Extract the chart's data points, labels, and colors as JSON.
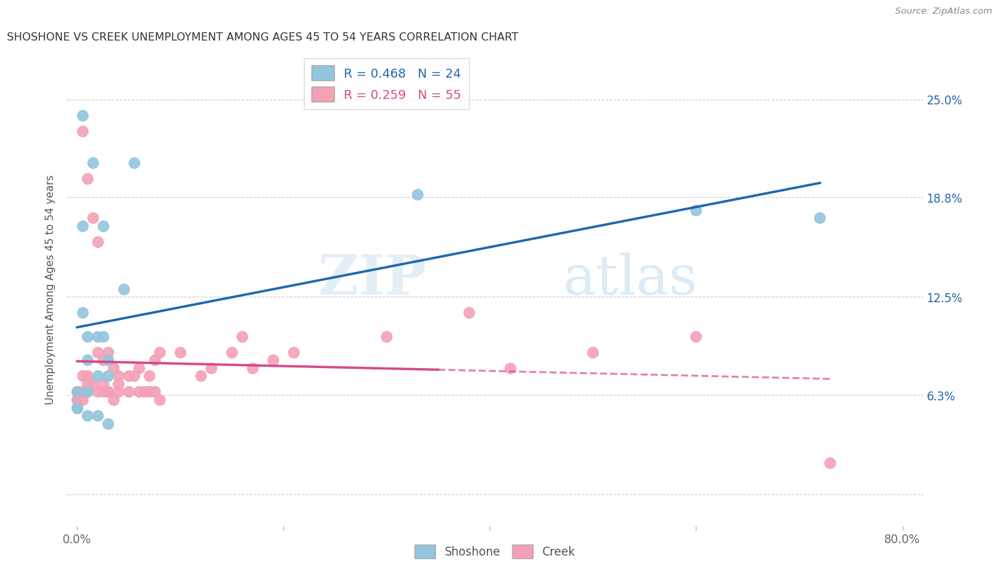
{
  "title": "SHOSHONE VS CREEK UNEMPLOYMENT AMONG AGES 45 TO 54 YEARS CORRELATION CHART",
  "source": "Source: ZipAtlas.com",
  "ylabel": "Unemployment Among Ages 45 to 54 years",
  "xlim": [
    0.0,
    0.8
  ],
  "ylim": [
    -0.02,
    0.28
  ],
  "ytick_values": [
    0.0,
    0.063,
    0.125,
    0.188,
    0.25
  ],
  "ytick_labels": [
    "",
    "6.3%",
    "12.5%",
    "18.8%",
    "25.0%"
  ],
  "shoshone_color": "#92c5de",
  "creek_color": "#f4a0b5",
  "shoshone_line_color": "#2166ac",
  "creek_line_color": "#d6498a",
  "R_shoshone": 0.468,
  "N_shoshone": 24,
  "R_creek": 0.259,
  "N_creek": 55,
  "shoshone_x": [
    0.005,
    0.015,
    0.055,
    0.005,
    0.025,
    0.045,
    0.005,
    0.01,
    0.02,
    0.025,
    0.03,
    0.01,
    0.02,
    0.03,
    0.0,
    0.01,
    0.0,
    0.0,
    0.01,
    0.02,
    0.03,
    0.33,
    0.6,
    0.72
  ],
  "shoshone_y": [
    0.24,
    0.21,
    0.21,
    0.17,
    0.17,
    0.13,
    0.115,
    0.1,
    0.1,
    0.1,
    0.085,
    0.085,
    0.075,
    0.075,
    0.065,
    0.065,
    0.055,
    0.055,
    0.05,
    0.05,
    0.045,
    0.19,
    0.18,
    0.175
  ],
  "creek_x": [
    0.005,
    0.01,
    0.015,
    0.02,
    0.02,
    0.025,
    0.025,
    0.03,
    0.03,
    0.035,
    0.04,
    0.04,
    0.05,
    0.055,
    0.06,
    0.065,
    0.07,
    0.075,
    0.08,
    0.0,
    0.0,
    0.0,
    0.0,
    0.0,
    0.005,
    0.005,
    0.005,
    0.01,
    0.01,
    0.01,
    0.015,
    0.02,
    0.025,
    0.03,
    0.035,
    0.04,
    0.05,
    0.06,
    0.07,
    0.075,
    0.08,
    0.1,
    0.12,
    0.13,
    0.15,
    0.16,
    0.17,
    0.19,
    0.21,
    0.3,
    0.38,
    0.42,
    0.5,
    0.6,
    0.73
  ],
  "creek_y": [
    0.23,
    0.2,
    0.175,
    0.16,
    0.09,
    0.085,
    0.07,
    0.09,
    0.065,
    0.08,
    0.065,
    0.075,
    0.065,
    0.075,
    0.065,
    0.065,
    0.065,
    0.065,
    0.06,
    0.065,
    0.065,
    0.06,
    0.06,
    0.055,
    0.075,
    0.065,
    0.06,
    0.075,
    0.07,
    0.065,
    0.07,
    0.065,
    0.065,
    0.065,
    0.06,
    0.07,
    0.075,
    0.08,
    0.075,
    0.085,
    0.09,
    0.09,
    0.075,
    0.08,
    0.09,
    0.1,
    0.08,
    0.085,
    0.09,
    0.1,
    0.115,
    0.08,
    0.09,
    0.1,
    0.02
  ],
  "watermark_zip": "ZIP",
  "watermark_atlas": "atlas",
  "background_color": "#ffffff",
  "grid_color": "#cccccc"
}
